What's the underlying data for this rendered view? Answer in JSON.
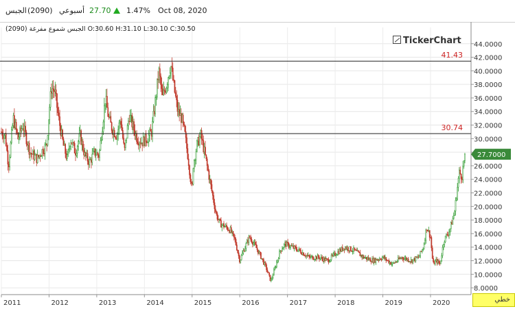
{
  "header": {
    "symbol_name": "الجبس",
    "symbol_code": "(2090)",
    "period": "أسبوعي",
    "price": "27.70",
    "change_pct": "1.47%",
    "date": "Oct 08, 2020",
    "change_color": "#22aa22"
  },
  "subtitle": "الجبس شموع مفرغة (2090) O:30.60 H:31.10 L:30.10 C:30.50",
  "logo": "TickerChart",
  "periodicity_label": "خطي",
  "chart_data": {
    "type": "candlestick",
    "x_labels": [
      "2011",
      "2012",
      "2013",
      "2014",
      "2015",
      "2016",
      "2017",
      "2018",
      "2019",
      "2020"
    ],
    "y_ticks": [
      "8.0000",
      "10.0000",
      "12.0000",
      "14.0000",
      "16.0000",
      "18.0000",
      "20.0000",
      "22.0000",
      "24.0000",
      "26.0000",
      "28.0000",
      "30.0000",
      "32.0000",
      "34.0000",
      "36.0000",
      "38.0000",
      "40.0000",
      "42.0000",
      "44.0000"
    ],
    "ylim": [
      7.0,
      46.4
    ],
    "xlim": [
      2011.0,
      2020.85
    ],
    "last_price_label": "27.7000",
    "last_price": 27.7,
    "horizontal_lines": [
      {
        "value": 41.43,
        "label": "41.43"
      },
      {
        "value": 30.74,
        "label": "30.74"
      }
    ],
    "colors": {
      "up": "#2e9a2e",
      "down": "#c0392b",
      "line_label": "#cc2222",
      "last_box": "#3a8a3a"
    },
    "grid": true,
    "anchors": [
      [
        2011.0,
        31.0
      ],
      [
        2011.08,
        30.5
      ],
      [
        2011.15,
        26.0
      ],
      [
        2011.25,
        33.0
      ],
      [
        2011.35,
        30.0
      ],
      [
        2011.45,
        32.0
      ],
      [
        2011.6,
        28.0
      ],
      [
        2011.75,
        27.0
      ],
      [
        2011.88,
        28.5
      ],
      [
        2011.95,
        29.0
      ],
      [
        2012.0,
        34.0
      ],
      [
        2012.05,
        37.5
      ],
      [
        2012.12,
        37.0
      ],
      [
        2012.2,
        33.0
      ],
      [
        2012.3,
        29.0
      ],
      [
        2012.38,
        27.0
      ],
      [
        2012.45,
        30.0
      ],
      [
        2012.55,
        28.0
      ],
      [
        2012.65,
        30.5
      ],
      [
        2012.75,
        27.5
      ],
      [
        2012.85,
        26.5
      ],
      [
        2012.95,
        28.0
      ],
      [
        2013.05,
        27.5
      ],
      [
        2013.12,
        32.0
      ],
      [
        2013.18,
        36.0
      ],
      [
        2013.25,
        33.0
      ],
      [
        2013.32,
        31.5
      ],
      [
        2013.42,
        30.5
      ],
      [
        2013.5,
        33.0
      ],
      [
        2013.58,
        28.0
      ],
      [
        2013.68,
        33.5
      ],
      [
        2013.75,
        32.0
      ],
      [
        2013.85,
        30.0
      ],
      [
        2013.95,
        29.5
      ],
      [
        2014.05,
        30.0
      ],
      [
        2014.15,
        31.0
      ],
      [
        2014.22,
        35.0
      ],
      [
        2014.3,
        40.0
      ],
      [
        2014.38,
        36.0
      ],
      [
        2014.46,
        38.0
      ],
      [
        2014.55,
        41.0
      ],
      [
        2014.62,
        37.5
      ],
      [
        2014.7,
        34.0
      ],
      [
        2014.78,
        33.0
      ],
      [
        2014.85,
        30.5
      ],
      [
        2014.92,
        27.0
      ],
      [
        2015.0,
        22.0
      ],
      [
        2015.02,
        26.0
      ],
      [
        2015.1,
        29.0
      ],
      [
        2015.18,
        30.5
      ],
      [
        2015.26,
        28.0
      ],
      [
        2015.34,
        25.0
      ],
      [
        2015.42,
        22.0
      ],
      [
        2015.5,
        19.0
      ],
      [
        2015.58,
        17.5
      ],
      [
        2015.7,
        17.0
      ],
      [
        2015.8,
        16.5
      ],
      [
        2015.9,
        15.0
      ],
      [
        2016.0,
        12.0
      ],
      [
        2016.08,
        13.5
      ],
      [
        2016.2,
        15.5
      ],
      [
        2016.3,
        14.5
      ],
      [
        2016.45,
        12.5
      ],
      [
        2016.55,
        11.0
      ],
      [
        2016.65,
        9.0
      ],
      [
        2016.72,
        10.5
      ],
      [
        2016.85,
        13.5
      ],
      [
        2016.95,
        14.5
      ],
      [
        2017.1,
        14.0
      ],
      [
        2017.25,
        13.5
      ],
      [
        2017.45,
        12.5
      ],
      [
        2017.65,
        12.5
      ],
      [
        2017.85,
        12.0
      ],
      [
        2018.0,
        13.0
      ],
      [
        2018.2,
        14.0
      ],
      [
        2018.4,
        13.5
      ],
      [
        2018.6,
        12.5
      ],
      [
        2018.8,
        12.0
      ],
      [
        2019.0,
        12.5
      ],
      [
        2019.2,
        11.5
      ],
      [
        2019.4,
        12.5
      ],
      [
        2019.6,
        12.0
      ],
      [
        2019.75,
        12.5
      ],
      [
        2019.85,
        14.0
      ],
      [
        2019.92,
        17.0
      ],
      [
        2020.0,
        15.5
      ],
      [
        2020.05,
        11.5
      ],
      [
        2020.12,
        12.0
      ],
      [
        2020.2,
        11.5
      ],
      [
        2020.28,
        15.0
      ],
      [
        2020.4,
        16.5
      ],
      [
        2020.5,
        19.0
      ],
      [
        2020.55,
        22.0
      ],
      [
        2020.6,
        25.0
      ],
      [
        2020.66,
        24.5
      ],
      [
        2020.72,
        27.7
      ]
    ]
  }
}
